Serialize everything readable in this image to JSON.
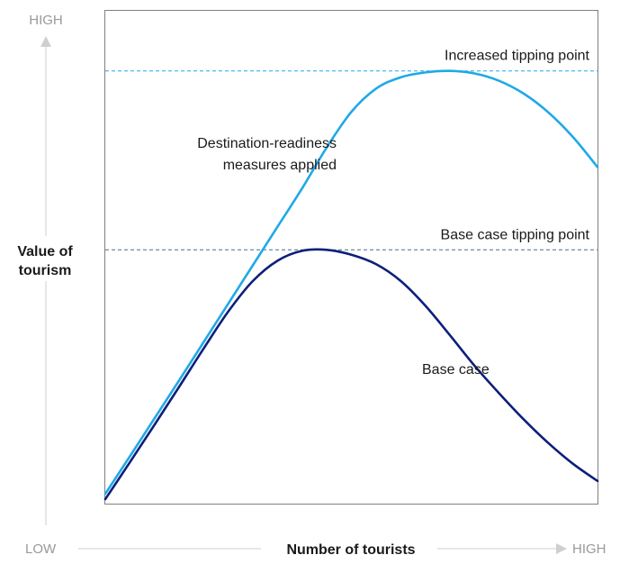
{
  "chart_data": {
    "type": "line",
    "xlabel": "Number of tourists",
    "ylabel_line1": "Value of",
    "ylabel_line2": "tourism",
    "y_axis_low": "LOW",
    "y_axis_high": "HIGH",
    "x_axis_low": "LOW",
    "x_axis_high": "HIGH",
    "xlim": [
      0,
      100
    ],
    "ylim": [
      0,
      100
    ],
    "grid": false,
    "series": [
      {
        "name": "Destination-readiness measures applied",
        "label_line1": "Destination-readiness",
        "label_line2": "measures applied",
        "color": "#1fa9e6",
        "points": [
          [
            0,
            2
          ],
          [
            5,
            9.6
          ],
          [
            10,
            17.3
          ],
          [
            15,
            25
          ],
          [
            20,
            32.8
          ],
          [
            25,
            40.6
          ],
          [
            30,
            48.4
          ],
          [
            35,
            56.2
          ],
          [
            40,
            64
          ],
          [
            45,
            72.3
          ],
          [
            50,
            79.5
          ],
          [
            55,
            84.2
          ],
          [
            60,
            86.5
          ],
          [
            65,
            87.5
          ],
          [
            70,
            87.8
          ],
          [
            75,
            87.3
          ],
          [
            80,
            85.8
          ],
          [
            85,
            83.2
          ],
          [
            90,
            79.4
          ],
          [
            95,
            74.4
          ],
          [
            100,
            68.3
          ]
        ]
      },
      {
        "name": "Base case",
        "label_line1": "Base case",
        "label_line2": "",
        "color": "#0d1f7a",
        "points": [
          [
            0,
            0.9
          ],
          [
            5,
            8.4
          ],
          [
            10,
            16
          ],
          [
            15,
            23.7
          ],
          [
            20,
            31.5
          ],
          [
            25,
            39
          ],
          [
            30,
            45.2
          ],
          [
            35,
            49.3
          ],
          [
            40,
            51.3
          ],
          [
            45,
            51.5
          ],
          [
            50,
            50.5
          ],
          [
            55,
            48.6
          ],
          [
            60,
            45.2
          ],
          [
            65,
            40.2
          ],
          [
            70,
            34.2
          ],
          [
            75,
            28
          ],
          [
            80,
            22.4
          ],
          [
            85,
            17.1
          ],
          [
            90,
            12.3
          ],
          [
            95,
            8.1
          ],
          [
            100,
            4.6
          ]
        ]
      }
    ],
    "reference_lines": [
      {
        "label": "Increased tipping point",
        "y": 87.8,
        "color": "#1fa9e6"
      },
      {
        "label": "Base case tipping point",
        "y": 51.5,
        "color": "#4a6a90"
      }
    ]
  }
}
